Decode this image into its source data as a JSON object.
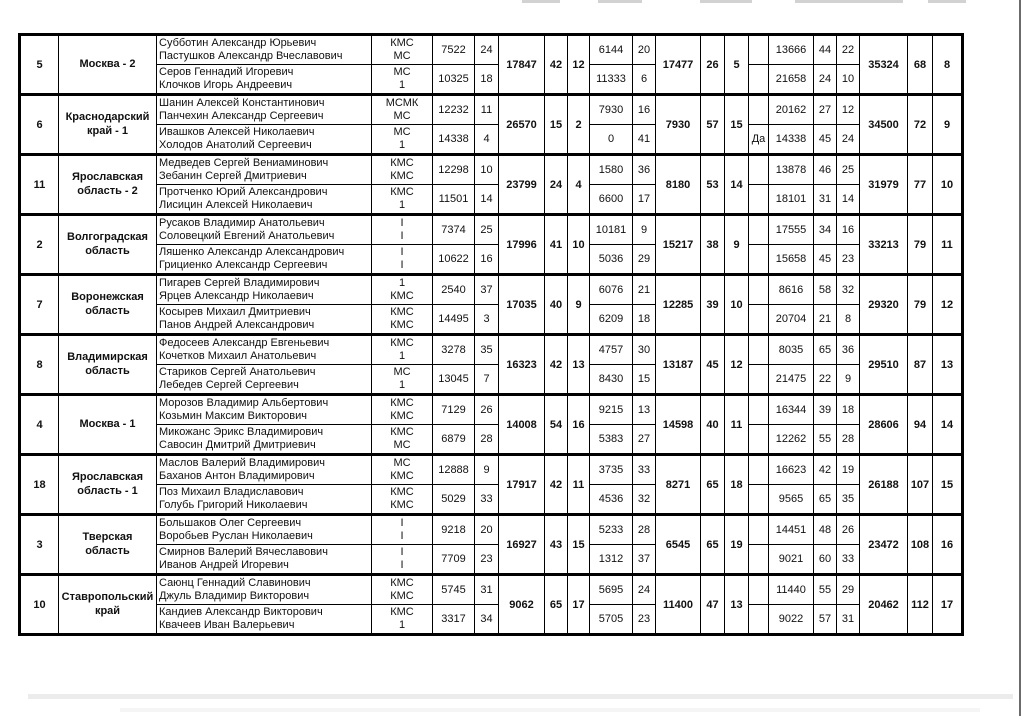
{
  "colors": {
    "table_border": "#000000",
    "text": "#111111",
    "page_edge_shadow": "#6b6b6b",
    "bottom_shadow": "#ececec"
  },
  "table": {
    "teams": [
      {
        "num": "5",
        "region": "Москва - 2",
        "pairs": [
          {
            "names": [
              "Субботин Александр Юрьевич",
              "Пастушков Александр Вчеславович"
            ],
            "ranks": [
              "КМС",
              "МС"
            ],
            "s1": "7522",
            "p1": "24",
            "s2": "6144",
            "p2": "20",
            "flag": "",
            "s3": "13666",
            "p3a": "44",
            "p3b": "22"
          },
          {
            "names": [
              "Серов Геннадий Игоревич",
              "Клочков Игорь Андреевич"
            ],
            "ranks": [
              "МС",
              "1"
            ],
            "s1": "10325",
            "p1": "18",
            "s2": "11333",
            "p2": "6",
            "flag": "",
            "s3": "21658",
            "p3a": "24",
            "p3b": "10"
          }
        ],
        "sum1": "17847",
        "sum1_a": "42",
        "sum1_b": "12",
        "sum2": "17477",
        "sum2_a": "26",
        "sum2_b": "5",
        "total": "35324",
        "total_points": "68",
        "final_place": "8"
      },
      {
        "num": "6",
        "region": "Краснодарский край - 1",
        "pairs": [
          {
            "names": [
              "Шанин Алексей Константинович",
              "Панчехин Александр Сергеевич"
            ],
            "ranks": [
              "МСМК",
              "МС"
            ],
            "s1": "12232",
            "p1": "11",
            "s2": "7930",
            "p2": "16",
            "flag": "",
            "s3": "20162",
            "p3a": "27",
            "p3b": "12"
          },
          {
            "names": [
              "Ивашков Алексей Николаевич",
              "Холодов Анатолий Сергеевич"
            ],
            "ranks": [
              "МС",
              "1"
            ],
            "s1": "14338",
            "p1": "4",
            "s2": "0",
            "p2": "41",
            "flag": "Да",
            "s3": "14338",
            "p3a": "45",
            "p3b": "24"
          }
        ],
        "sum1": "26570",
        "sum1_a": "15",
        "sum1_b": "2",
        "sum2": "7930",
        "sum2_a": "57",
        "sum2_b": "15",
        "total": "34500",
        "total_points": "72",
        "final_place": "9"
      },
      {
        "num": "11",
        "region": "Ярославская область - 2",
        "pairs": [
          {
            "names": [
              "Медведев Сергей Вениаминович",
              "Зебанин Сергей Дмитриевич"
            ],
            "ranks": [
              "КМС",
              "КМС"
            ],
            "s1": "12298",
            "p1": "10",
            "s2": "1580",
            "p2": "36",
            "flag": "",
            "s3": "13878",
            "p3a": "46",
            "p3b": "25"
          },
          {
            "names": [
              "Протченко Юрий Александрович",
              "Лисицин Алексей Николаевич"
            ],
            "ranks": [
              "КМС",
              "1"
            ],
            "s1": "11501",
            "p1": "14",
            "s2": "6600",
            "p2": "17",
            "flag": "",
            "s3": "18101",
            "p3a": "31",
            "p3b": "14"
          }
        ],
        "sum1": "23799",
        "sum1_a": "24",
        "sum1_b": "4",
        "sum2": "8180",
        "sum2_a": "53",
        "sum2_b": "14",
        "total": "31979",
        "total_points": "77",
        "final_place": "10"
      },
      {
        "num": "2",
        "region": "Волгоградская область",
        "pairs": [
          {
            "names": [
              "Русаков Владимир Анатольевич",
              "Соловецкий Евгений Анатольевич"
            ],
            "ranks": [
              "I",
              "I"
            ],
            "s1": "7374",
            "p1": "25",
            "s2": "10181",
            "p2": "9",
            "flag": "",
            "s3": "17555",
            "p3a": "34",
            "p3b": "16"
          },
          {
            "names": [
              "Ляшенко Александр Александрович",
              "Грициенко Александр Сергеевич"
            ],
            "ranks": [
              "I",
              "I"
            ],
            "s1": "10622",
            "p1": "16",
            "s2": "5036",
            "p2": "29",
            "flag": "",
            "s3": "15658",
            "p3a": "45",
            "p3b": "23"
          }
        ],
        "sum1": "17996",
        "sum1_a": "41",
        "sum1_b": "10",
        "sum2": "15217",
        "sum2_a": "38",
        "sum2_b": "9",
        "total": "33213",
        "total_points": "79",
        "final_place": "11"
      },
      {
        "num": "7",
        "region": "Воронежская область",
        "pairs": [
          {
            "names": [
              "Пигарев Сергей Владимирович",
              "Ярцев Александр Николаевич"
            ],
            "ranks": [
              "1",
              "КМС"
            ],
            "s1": "2540",
            "p1": "37",
            "s2": "6076",
            "p2": "21",
            "flag": "",
            "s3": "8616",
            "p3a": "58",
            "p3b": "32"
          },
          {
            "names": [
              "Косырев Михаил Дмитриевич",
              "Панов Андрей Александрович"
            ],
            "ranks": [
              "КМС",
              "КМС"
            ],
            "s1": "14495",
            "p1": "3",
            "s2": "6209",
            "p2": "18",
            "flag": "",
            "s3": "20704",
            "p3a": "21",
            "p3b": "8"
          }
        ],
        "sum1": "17035",
        "sum1_a": "40",
        "sum1_b": "9",
        "sum2": "12285",
        "sum2_a": "39",
        "sum2_b": "10",
        "total": "29320",
        "total_points": "79",
        "final_place": "12"
      },
      {
        "num": "8",
        "region": "Владимирская область",
        "pairs": [
          {
            "names": [
              "Федосеев Александр Евгеньевич",
              "Кочетков Михаил Анатольевич"
            ],
            "ranks": [
              "КМС",
              "1"
            ],
            "s1": "3278",
            "p1": "35",
            "s2": "4757",
            "p2": "30",
            "flag": "",
            "s3": "8035",
            "p3a": "65",
            "p3b": "36"
          },
          {
            "names": [
              "Стариков Сергей Анатольевич",
              "Лебедев Сергей Сергеевич"
            ],
            "ranks": [
              "МС",
              "1"
            ],
            "s1": "13045",
            "p1": "7",
            "s2": "8430",
            "p2": "15",
            "flag": "",
            "s3": "21475",
            "p3a": "22",
            "p3b": "9"
          }
        ],
        "sum1": "16323",
        "sum1_a": "42",
        "sum1_b": "13",
        "sum2": "13187",
        "sum2_a": "45",
        "sum2_b": "12",
        "total": "29510",
        "total_points": "87",
        "final_place": "13"
      },
      {
        "num": "4",
        "region": "Москва - 1",
        "pairs": [
          {
            "names": [
              "Морозов Владимир Альбертович",
              "Козьмин Максим Викторович"
            ],
            "ranks": [
              "КМС",
              "КМС"
            ],
            "s1": "7129",
            "p1": "26",
            "s2": "9215",
            "p2": "13",
            "flag": "",
            "s3": "16344",
            "p3a": "39",
            "p3b": "18"
          },
          {
            "names": [
              "Микожанс Эрикс Владимирович",
              "Савосин Дмитрий Дмитриевич"
            ],
            "ranks": [
              "КМС",
              "МС"
            ],
            "s1": "6879",
            "p1": "28",
            "s2": "5383",
            "p2": "27",
            "flag": "",
            "s3": "12262",
            "p3a": "55",
            "p3b": "28"
          }
        ],
        "sum1": "14008",
        "sum1_a": "54",
        "sum1_b": "16",
        "sum2": "14598",
        "sum2_a": "40",
        "sum2_b": "11",
        "total": "28606",
        "total_points": "94",
        "final_place": "14"
      },
      {
        "num": "18",
        "region": "Ярославская область - 1",
        "pairs": [
          {
            "names": [
              "Маслов Валерий Владимирович",
              "Баханов Антон Владимирович"
            ],
            "ranks": [
              "МС",
              "КМС"
            ],
            "s1": "12888",
            "p1": "9",
            "s2": "3735",
            "p2": "33",
            "flag": "",
            "s3": "16623",
            "p3a": "42",
            "p3b": "19"
          },
          {
            "names": [
              "Поз Михаил Владиславович",
              "Голубь Григорий Николаевич"
            ],
            "ranks": [
              "КМС",
              "КМС"
            ],
            "s1": "5029",
            "p1": "33",
            "s2": "4536",
            "p2": "32",
            "flag": "",
            "s3": "9565",
            "p3a": "65",
            "p3b": "35"
          }
        ],
        "sum1": "17917",
        "sum1_a": "42",
        "sum1_b": "11",
        "sum2": "8271",
        "sum2_a": "65",
        "sum2_b": "18",
        "total": "26188",
        "total_points": "107",
        "final_place": "15"
      },
      {
        "num": "3",
        "region": "Тверская область",
        "pairs": [
          {
            "names": [
              "Большаков Олег Сергеевич",
              "Воробьев Руслан Николаевич"
            ],
            "ranks": [
              "I",
              "I"
            ],
            "s1": "9218",
            "p1": "20",
            "s2": "5233",
            "p2": "28",
            "flag": "",
            "s3": "14451",
            "p3a": "48",
            "p3b": "26"
          },
          {
            "names": [
              "Смирнов Валерий Вячеславович",
              "Иванов Андрей Игоревич"
            ],
            "ranks": [
              "I",
              "I"
            ],
            "s1": "7709",
            "p1": "23",
            "s2": "1312",
            "p2": "37",
            "flag": "",
            "s3": "9021",
            "p3a": "60",
            "p3b": "33"
          }
        ],
        "sum1": "16927",
        "sum1_a": "43",
        "sum1_b": "15",
        "sum2": "6545",
        "sum2_a": "65",
        "sum2_b": "19",
        "total": "23472",
        "total_points": "108",
        "final_place": "16"
      },
      {
        "num": "10",
        "region": "Ставропольский край",
        "pairs": [
          {
            "names": [
              "Саюнц Геннадий Славинович",
              "Джуль Владимир Викторович"
            ],
            "ranks": [
              "КМС",
              "КМС"
            ],
            "s1": "5745",
            "p1": "31",
            "s2": "5695",
            "p2": "24",
            "flag": "",
            "s3": "11440",
            "p3a": "55",
            "p3b": "29"
          },
          {
            "names": [
              "Кандиев Александр Викторович",
              "Квачеев Иван Валерьевич"
            ],
            "ranks": [
              "КМС",
              "1"
            ],
            "s1": "3317",
            "p1": "34",
            "s2": "5705",
            "p2": "23",
            "flag": "",
            "s3": "9022",
            "p3a": "57",
            "p3b": "31"
          }
        ],
        "sum1": "9062",
        "sum1_a": "65",
        "sum1_b": "17",
        "sum2": "11400",
        "sum2_a": "47",
        "sum2_b": "13",
        "total": "20462",
        "total_points": "112",
        "final_place": "17"
      }
    ]
  }
}
